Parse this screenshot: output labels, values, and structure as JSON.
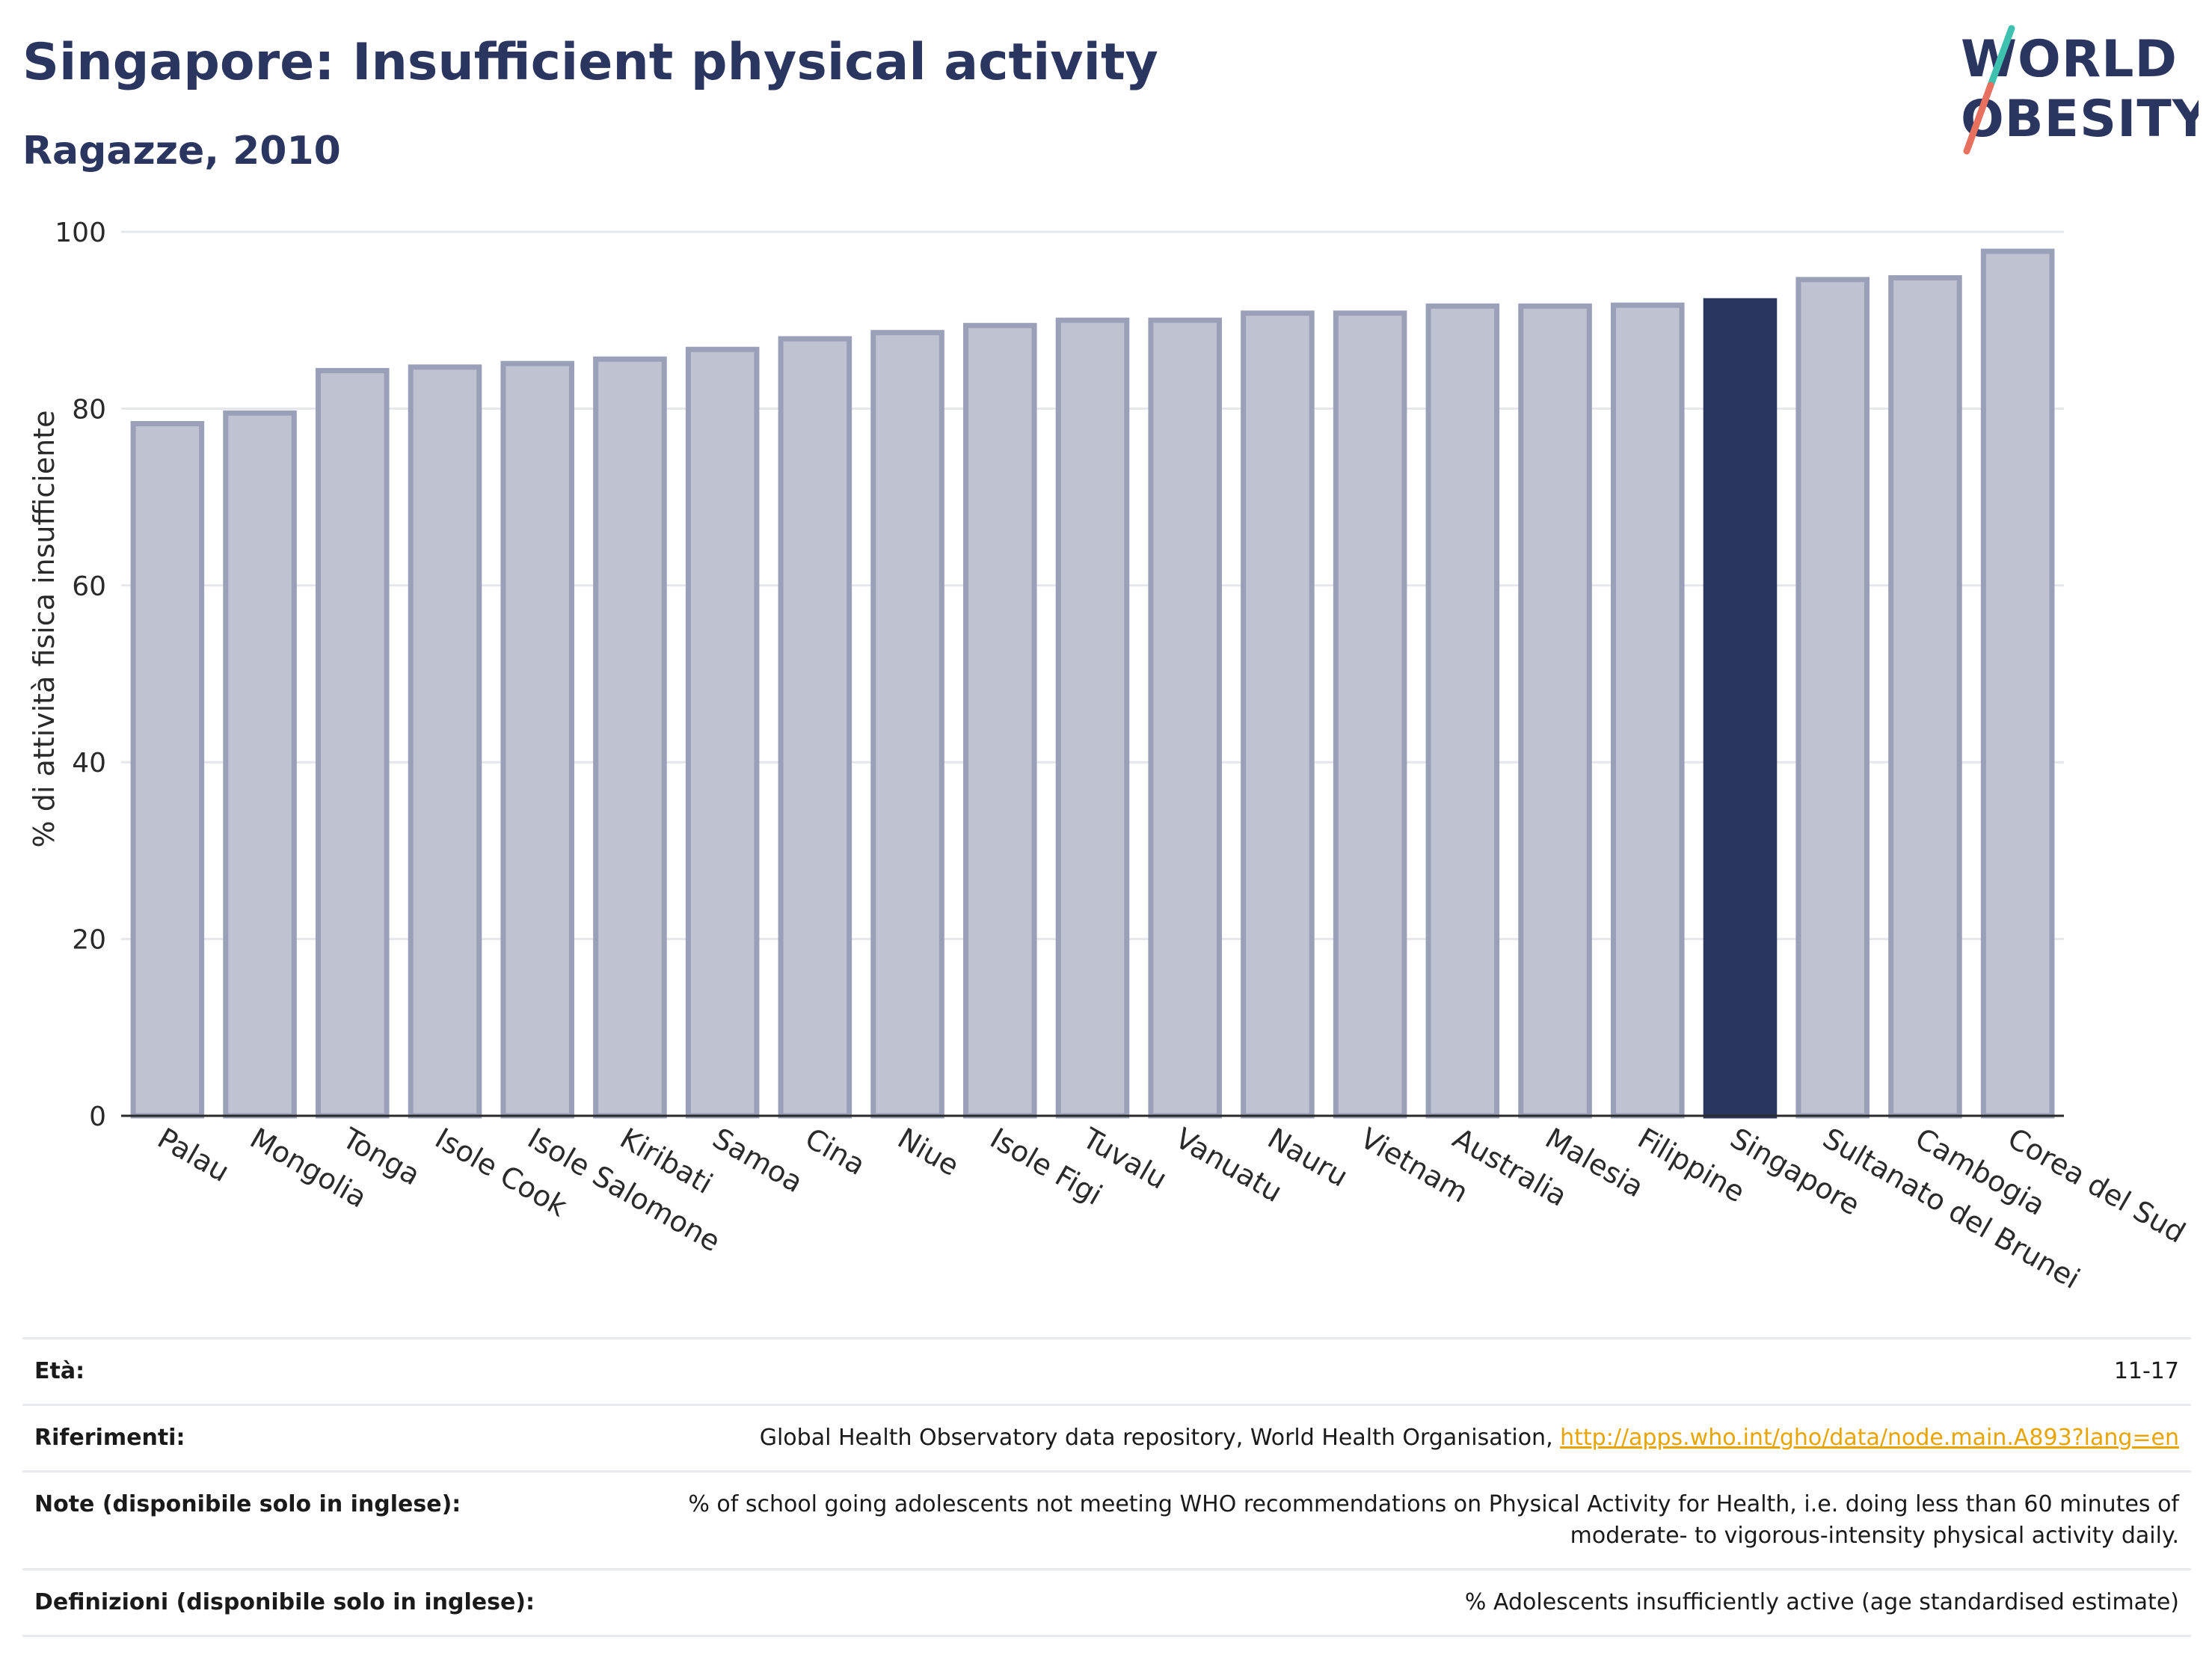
{
  "header": {
    "title": "Singapore: Insufficient physical activity",
    "subtitle": "Ragazze, 2010",
    "logo_line1": "WORLD",
    "logo_line2": "OBESITY"
  },
  "colors": {
    "brand": "#2b3660",
    "bar_default": "#bfc2d0",
    "bar_default_border": "#9aa0b8",
    "bar_highlight": "#2b3660",
    "link": "#e8a400",
    "logo_slash_top": "#3fc1b0",
    "logo_slash_bottom": "#e8705f"
  },
  "chart_data": {
    "type": "bar",
    "title": "Singapore: Insufficient physical activity",
    "subtitle": "Ragazze, 2010",
    "xlabel": "",
    "ylabel": "% di attività fisica insufficiente",
    "ylim": [
      0,
      100
    ],
    "yticks": [
      0,
      20,
      40,
      60,
      80,
      100
    ],
    "grid": true,
    "highlight": "Singapore",
    "categories": [
      "Palau",
      "Mongolia",
      "Tonga",
      "Isole Cook",
      "Isole Salomone",
      "Kiribati",
      "Samoa",
      "Cina",
      "Niue",
      "Isole Figi",
      "Tuvalu",
      "Vanuatu",
      "Nauru",
      "Vietnam",
      "Australia",
      "Malesia",
      "Filippine",
      "Singapore",
      "Sultanato del Brunei",
      "Cambogia",
      "Corea del Sud"
    ],
    "values": [
      78.3,
      79.5,
      84.3,
      84.7,
      85.1,
      85.6,
      86.7,
      87.9,
      88.6,
      89.4,
      90.0,
      90.0,
      90.8,
      90.8,
      91.6,
      91.6,
      91.7,
      92.2,
      94.6,
      94.8,
      97.8
    ]
  },
  "info": [
    {
      "key": "Età:",
      "value": "11-17"
    },
    {
      "key": "Riferimenti:",
      "value": "Global Health Observatory data repository, World Health Organisation, ",
      "link": "http://apps.who.int/gho/data/node.main.A893?lang=en"
    },
    {
      "key": "Note (disponibile solo in inglese):",
      "value": "% of school going adolescents not meeting WHO recommendations on Physical Activity for Health, i.e. doing less than 60 minutes of moderate- to vigorous-intensity physical activity daily."
    },
    {
      "key": "Definizioni (disponibile solo in inglese):",
      "value": "% Adolescents insufficiently active (age standardised estimate)"
    }
  ]
}
